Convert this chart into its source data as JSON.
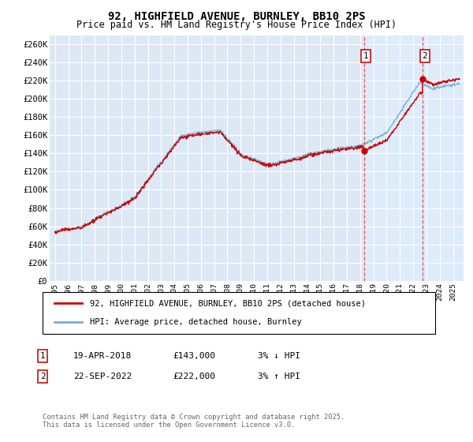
{
  "title": "92, HIGHFIELD AVENUE, BURNLEY, BB10 2PS",
  "subtitle": "Price paid vs. HM Land Registry's House Price Index (HPI)",
  "ylabel_ticks": [
    "£0",
    "£20K",
    "£40K",
    "£60K",
    "£80K",
    "£100K",
    "£120K",
    "£140K",
    "£160K",
    "£180K",
    "£200K",
    "£220K",
    "£240K",
    "£260K"
  ],
  "ytick_values": [
    0,
    20000,
    40000,
    60000,
    80000,
    100000,
    120000,
    140000,
    160000,
    180000,
    200000,
    220000,
    240000,
    260000
  ],
  "ylim": [
    0,
    270000
  ],
  "xlim_left": 1994.6,
  "xlim_right": 2025.8,
  "background_color": "#dde8f5",
  "legend_label_red": "92, HIGHFIELD AVENUE, BURNLEY, BB10 2PS (detached house)",
  "legend_label_blue": "HPI: Average price, detached house, Burnley",
  "marker1_date": "19-APR-2018",
  "marker1_price": "£143,000",
  "marker1_hpi": "3% ↓ HPI",
  "marker2_date": "22-SEP-2022",
  "marker2_price": "£222,000",
  "marker2_hpi": "3% ↑ HPI",
  "footer": "Contains HM Land Registry data © Crown copyright and database right 2025.\nThis data is licensed under the Open Government Licence v3.0.",
  "red_color": "#cc0000",
  "blue_color": "#7aaed6",
  "dashed_color": "#dd3333",
  "shade_color": "#ddeeff",
  "sale1_year": 2018.29,
  "sale2_year": 2022.72,
  "sale1_price": 143000,
  "sale2_price": 222000
}
